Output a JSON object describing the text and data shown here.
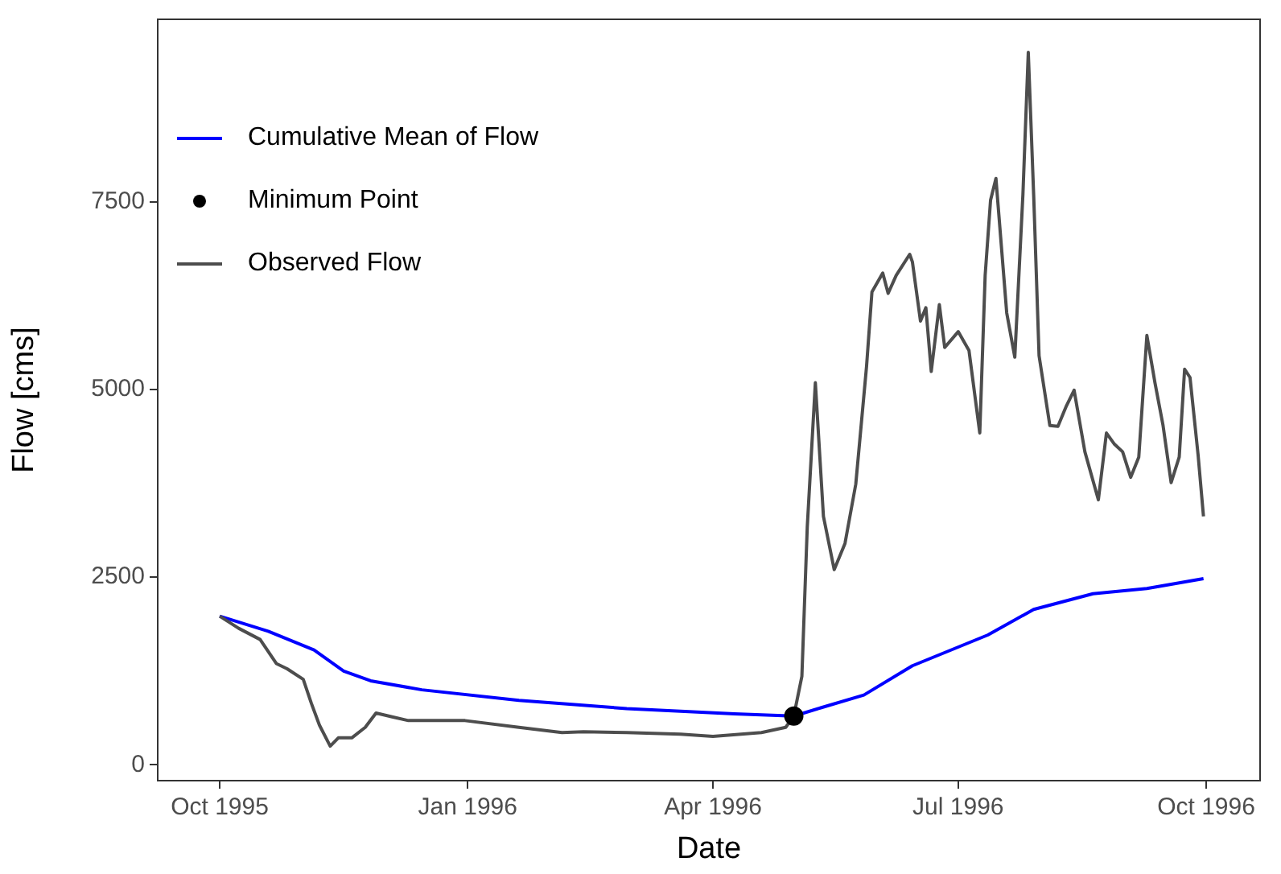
{
  "chart_data": {
    "type": "line",
    "xlabel": "Date",
    "ylabel": "Flow [cms]",
    "xlim": [
      "1995-09-08",
      "1996-10-21"
    ],
    "ylim": [
      -210,
      9930
    ],
    "xticks": [
      {
        "value": "1995-10-01",
        "label": "Oct 1995"
      },
      {
        "value": "1996-01-01",
        "label": "Jan 1996"
      },
      {
        "value": "1996-04-01",
        "label": "Apr 1996"
      },
      {
        "value": "1996-07-01",
        "label": "Jul 1996"
      },
      {
        "value": "1996-10-01",
        "label": "Oct 1996"
      }
    ],
    "yticks": [
      0,
      2500,
      5000,
      7500
    ],
    "grid": false,
    "legend": "top left",
    "marker": "none",
    "line_style": "solid",
    "series": [
      {
        "name": "Observed Flow",
        "color": "#4d4d4d",
        "x": [
          "1995-10-01",
          "1995-10-08",
          "1995-10-16",
          "1995-10-22",
          "1995-10-26",
          "1995-11-01",
          "1995-11-04",
          "1995-11-07",
          "1995-11-11",
          "1995-11-14",
          "1995-11-19",
          "1995-11-24",
          "1995-11-28",
          "1995-12-04",
          "1995-12-10",
          "1995-12-31",
          "1996-01-20",
          "1996-02-05",
          "1996-02-13",
          "1996-02-29",
          "1996-03-20",
          "1996-04-01",
          "1996-04-19",
          "1996-04-28",
          "1996-05-01",
          "1996-05-04",
          "1996-05-06",
          "1996-05-09",
          "1996-05-12",
          "1996-05-16",
          "1996-05-20",
          "1996-05-24",
          "1996-05-28",
          "1996-05-30",
          "1996-06-03",
          "1996-06-05",
          "1996-06-08",
          "1996-06-13",
          "1996-06-14",
          "1996-06-17",
          "1996-06-19",
          "1996-06-21",
          "1996-06-24",
          "1996-06-26",
          "1996-07-01",
          "1996-07-05",
          "1996-07-09",
          "1996-07-11",
          "1996-07-13",
          "1996-07-15",
          "1996-07-19",
          "1996-07-22",
          "1996-07-25",
          "1996-07-27",
          "1996-07-29",
          "1996-07-31",
          "1996-08-04",
          "1996-08-07",
          "1996-08-10",
          "1996-08-13",
          "1996-08-17",
          "1996-08-22",
          "1996-08-25",
          "1996-08-28",
          "1996-08-31",
          "1996-09-03",
          "1996-09-06",
          "1996-09-09",
          "1996-09-12",
          "1996-09-15",
          "1996-09-18",
          "1996-09-21",
          "1996-09-23",
          "1996-09-25",
          "1996-09-28",
          "1996-09-30"
        ],
        "values": [
          1980,
          1820,
          1670,
          1350,
          1280,
          1140,
          820,
          530,
          250,
          360,
          360,
          500,
          690,
          640,
          590,
          590,
          500,
          430,
          440,
          430,
          410,
          380,
          430,
          500,
          650,
          1180,
          3170,
          5090,
          3310,
          2600,
          2950,
          3740,
          5310,
          6300,
          6550,
          6280,
          6520,
          6800,
          6700,
          5910,
          6090,
          5240,
          6130,
          5560,
          5770,
          5520,
          4420,
          6520,
          7520,
          7810,
          6020,
          5430,
          7590,
          9490,
          7590,
          5450,
          4520,
          4510,
          4770,
          4990,
          4170,
          3530,
          4420,
          4270,
          4170,
          3830,
          4100,
          5720,
          5090,
          4520,
          3760,
          4100,
          5270,
          5160,
          4130,
          3310
        ]
      },
      {
        "name": "Cumulative Mean of Flow",
        "color": "#0000ff",
        "x": [
          "1995-10-01",
          "1995-10-19",
          "1995-11-05",
          "1995-11-16",
          "1995-11-26",
          "1995-12-15",
          "1996-01-20",
          "1996-02-29",
          "1996-04-09",
          "1996-05-01",
          "1996-05-11",
          "1996-05-27",
          "1996-06-14",
          "1996-07-12",
          "1996-07-29",
          "1996-08-20",
          "1996-09-09",
          "1996-09-30"
        ],
        "values": [
          1980,
          1780,
          1530,
          1250,
          1120,
          1000,
          860,
          750,
          680,
          650,
          760,
          930,
          1320,
          1730,
          2070,
          2280,
          2350,
          2480
        ]
      },
      {
        "name": "Minimum Point",
        "color": "#000000",
        "type": "scatter",
        "marker": "circle",
        "x": [
          "1996-05-01"
        ],
        "values": [
          650
        ]
      }
    ]
  }
}
